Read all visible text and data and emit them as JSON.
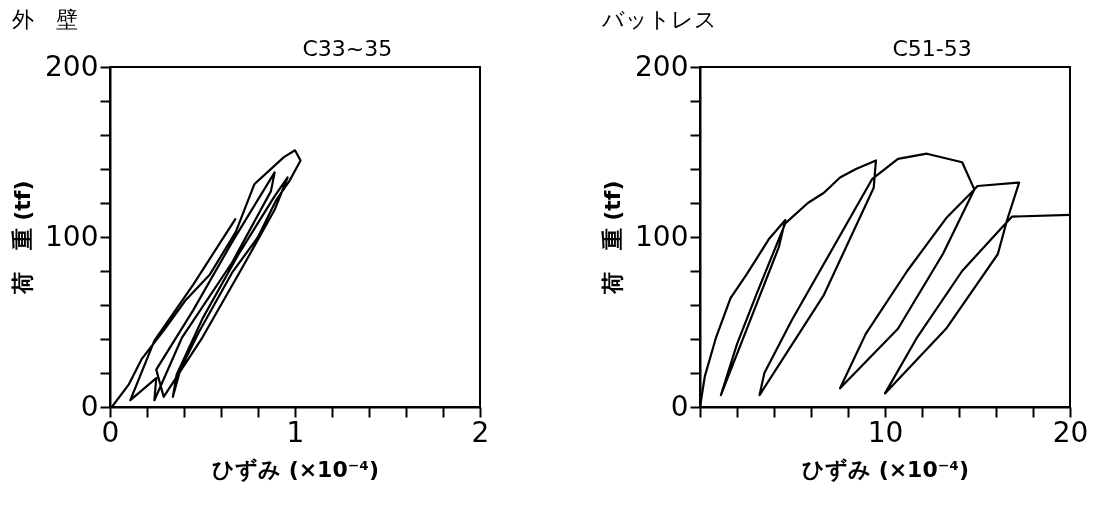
{
  "chart_data": [
    {
      "type": "line",
      "title": "外　壁",
      "annotations": [
        "C33~35"
      ],
      "xlabel": "ひずみ (×10⁻⁴)",
      "ylabel": "荷　重 (tf)",
      "xlim": [
        0,
        2
      ],
      "ylim": [
        0,
        200
      ],
      "xticks": [
        0,
        {
          "value": 0.2,
          "label": null
        },
        {
          "value": 0.4,
          "label": null
        },
        {
          "value": 0.6,
          "label": null
        },
        {
          "value": 0.8,
          "label": null
        },
        1,
        {
          "value": 1.2,
          "label": null
        },
        {
          "value": 1.4,
          "label": null
        },
        {
          "value": 1.6,
          "label": null
        },
        {
          "value": 1.8,
          "label": null
        },
        2
      ],
      "yticks": [
        0,
        {
          "value": 20,
          "label": null
        },
        {
          "value": 40,
          "label": null
        },
        {
          "value": 60,
          "label": null
        },
        {
          "value": 80,
          "label": null
        },
        100,
        {
          "value": 120,
          "label": null
        },
        {
          "value": 140,
          "label": null
        },
        {
          "value": 160,
          "label": null
        },
        {
          "value": 180,
          "label": null
        },
        200
      ],
      "grid": false,
      "marker": "none",
      "series": [
        {
          "color": "#000000",
          "x": [
            0.01,
            0.1,
            0.17,
            0.29,
            0.41,
            0.54,
            0.68,
            0.78,
            0.94,
            1.0,
            1.03,
            0.97,
            0.9,
            0.8,
            0.66,
            0.48,
            0.38,
            0.34,
            0.36,
            0.5,
            0.69,
            0.89,
            0.96,
            0.89,
            0.71,
            0.5,
            0.29,
            0.25,
            0.45,
            0.66,
            0.89,
            0.87,
            0.66,
            0.39,
            0.24,
            0.25,
            0.11,
            0.24,
            0.45,
            0.68
          ],
          "values": [
            0,
            13,
            28,
            45,
            63,
            78,
            103,
            131,
            147,
            151,
            145,
            133,
            122,
            100,
            79,
            44,
            22,
            6,
            19,
            52,
            89,
            124,
            135,
            116,
            81,
            41,
            6,
            22,
            57,
            97,
            138,
            127,
            85,
            41,
            4,
            17,
            4,
            39,
            72,
            111
          ]
        }
      ]
    },
    {
      "type": "line",
      "title": "バットレス",
      "annotations": [
        "C51-53"
      ],
      "xlabel": "ひずみ (×10⁻⁴)",
      "ylabel": "荷　重 (tf)",
      "xlim": [
        0,
        20
      ],
      "ylim": [
        0,
        200
      ],
      "xticks": [
        {
          "value": 0,
          "label": null
        },
        {
          "value": 2,
          "label": null
        },
        {
          "value": 4,
          "label": null
        },
        {
          "value": 6,
          "label": null
        },
        {
          "value": 8,
          "label": null
        },
        10,
        {
          "value": 12,
          "label": null
        },
        {
          "value": 14,
          "label": null
        },
        {
          "value": 16,
          "label": null
        },
        {
          "value": 18,
          "label": null
        },
        20
      ],
      "yticks": [
        0,
        {
          "value": 20,
          "label": null
        },
        {
          "value": 40,
          "label": null
        },
        {
          "value": 60,
          "label": null
        },
        {
          "value": 80,
          "label": null
        },
        100,
        {
          "value": 120,
          "label": null
        },
        {
          "value": 140,
          "label": null
        },
        {
          "value": 160,
          "label": null
        },
        {
          "value": 180,
          "label": null
        },
        200
      ],
      "grid": false,
      "marker": "none",
      "series": [
        {
          "color": "#000000",
          "x": [
            0,
            0.26,
            0.87,
            1.65,
            2.52,
            3.74,
            4.61,
            4.26,
            1.13,
            2.0,
            3.04,
            4.61,
            5.83,
            6.7,
            7.57,
            8.43,
            9.51,
            9.39,
            6.7,
            3.22,
            3.48,
            4.96,
            9.3,
            10.7,
            12.26,
            14.17,
            14.83,
            13.13,
            10.7,
            7.57,
            8.96,
            11.2,
            13.3,
            14.83,
            15.0,
            17.25,
            16.6,
            16.1,
            13.3,
            10.0,
            11.74,
            14.17,
            16.52,
            16.87,
            20
          ],
          "values": [
            0,
            18,
            41,
            64,
            78,
            99,
            110,
            94,
            7,
            37,
            66,
            108,
            120,
            126,
            135,
            140,
            145,
            129,
            66,
            7,
            20,
            51,
            134,
            146,
            149,
            144,
            128,
            90,
            46,
            11,
            43,
            80,
            111,
            128,
            130,
            132,
            110,
            90,
            46,
            8,
            41,
            80,
            108,
            112,
            113
          ]
        }
      ]
    }
  ]
}
